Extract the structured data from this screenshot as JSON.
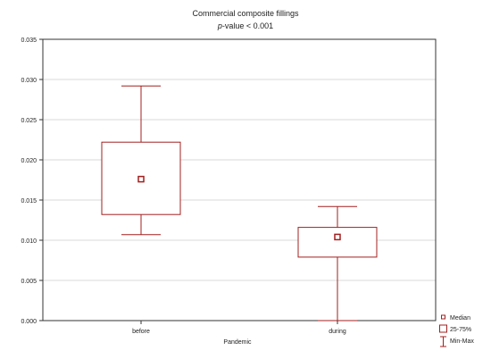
{
  "chart_data": {
    "type": "box",
    "title": "Commercial composite fillings",
    "subtitle_italic": "p",
    "subtitle_rest": "-value < 0.001",
    "xlabel": "Pandemic",
    "ylabel": "",
    "ylim": [
      0,
      0.035
    ],
    "yticks": [
      "0.000",
      "0.005",
      "0.010",
      "0.015",
      "0.020",
      "0.025",
      "0.030",
      "0.035"
    ],
    "categories": [
      "before",
      "during"
    ],
    "boxes": [
      {
        "category": "before",
        "min": 0.0107,
        "q1": 0.0132,
        "median": 0.0176,
        "q3": 0.0222,
        "max": 0.0292
      },
      {
        "category": "during",
        "min": 0.0,
        "q1": 0.0079,
        "median": 0.0104,
        "q3": 0.0116,
        "max": 0.0142
      }
    ],
    "grid": true,
    "legend_position": "bottom-right",
    "legend": [
      "Median",
      "25-75%",
      "Min-Max"
    ],
    "color": "#a31f1f"
  }
}
